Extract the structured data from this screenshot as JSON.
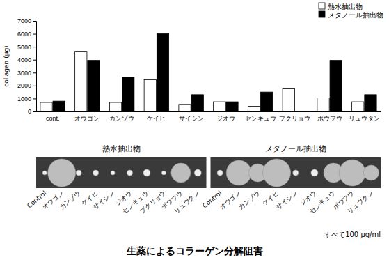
{
  "chart_data": {
    "type": "bar",
    "y_label": "collagen (μg)",
    "categories": [
      "cont.",
      "オウゴン",
      "カンゾウ",
      "ケイヒ",
      "サイシン",
      "ジオウ",
      "センキュウ",
      "ブクリョウ",
      "ボウフウ",
      "リュウタン"
    ],
    "series": [
      {
        "name": "熱水抽出物",
        "color": "#ffffff",
        "values": [
          700,
          4650,
          700,
          2450,
          550,
          750,
          400,
          1750,
          1050,
          750
        ]
      },
      {
        "name": "メタノール抽出物",
        "color": "#000000",
        "values": [
          800,
          3950,
          2650,
          6000,
          1300,
          750,
          1500,
          null,
          3950,
          1300
        ]
      }
    ],
    "ylim": [
      0,
      7000
    ],
    "yticks": [
      0,
      1000,
      2000,
      3000,
      4000,
      5000,
      6000,
      7000
    ],
    "grid": false,
    "legend": "upper right"
  },
  "photo_panels": [
    {
      "title": "熱水抽出物",
      "labels": [
        "Control",
        "オウゴン",
        "カンゾウ",
        "ケイヒ",
        "サイシン",
        "ジオウ",
        "センキュウ",
        "ブクリョウ",
        "ボウフウ",
        "リュウタン"
      ]
    },
    {
      "title": "メタノール抽出物",
      "labels": [
        "Control",
        "オウゴン",
        "カンゾウ",
        "ケイヒ",
        "サイシン",
        "ジオウ",
        "センキュウ",
        "ボウフウ",
        "リュウタン"
      ]
    }
  ],
  "note": "すべて100 μg/ml",
  "caption": "生薬によるコラーゲン分解阻害"
}
